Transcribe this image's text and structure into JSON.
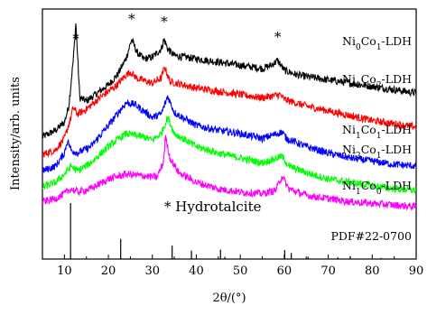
{
  "chart_data": {
    "type": "line",
    "title": "",
    "xlabel": "2θ/(°)",
    "ylabel": "Intensity/arb. units",
    "xlim": [
      5,
      90
    ],
    "x_ticks": [
      10,
      20,
      30,
      40,
      50,
      60,
      70,
      80,
      90
    ],
    "y_ticks_shown": false,
    "grid": false,
    "legend": "labels placed at right end of each curve",
    "series": [
      {
        "label_parts": [
          "Ni",
          "0",
          "Co",
          "1",
          "-LDH"
        ],
        "color": "#000000",
        "x": [
          5,
          8,
          10,
          11,
          12,
          12.6,
          13.5,
          15,
          18,
          20,
          22,
          24,
          25.3,
          26.5,
          28,
          30,
          32,
          32.7,
          33.5,
          35,
          40,
          45,
          50,
          55,
          57,
          58.5,
          60,
          63,
          70,
          75,
          80,
          85,
          90
        ],
        "y": [
          0.38,
          0.42,
          0.47,
          0.57,
          0.85,
          1.08,
          0.62,
          0.6,
          0.66,
          0.7,
          0.76,
          0.86,
          0.98,
          0.9,
          0.86,
          0.87,
          0.92,
          0.98,
          0.92,
          0.88,
          0.86,
          0.84,
          0.82,
          0.8,
          0.82,
          0.85,
          0.79,
          0.76,
          0.73,
          0.71,
          0.69,
          0.67,
          0.65
        ]
      },
      {
        "label_parts": [
          "Ni",
          "1",
          "Co",
          "2",
          "-LDH"
        ],
        "color": "#ff0000",
        "x": [
          5,
          8,
          10,
          11.5,
          12,
          13,
          15,
          18,
          20,
          22,
          24,
          25,
          26.5,
          30,
          32,
          32.8,
          34,
          40,
          45,
          50,
          55,
          59,
          60,
          65,
          70,
          75,
          80,
          85,
          90
        ],
        "y": [
          0.27,
          0.3,
          0.37,
          0.5,
          0.56,
          0.52,
          0.55,
          0.62,
          0.66,
          0.7,
          0.76,
          0.78,
          0.74,
          0.71,
          0.74,
          0.81,
          0.72,
          0.68,
          0.66,
          0.64,
          0.62,
          0.64,
          0.61,
          0.57,
          0.54,
          0.51,
          0.48,
          0.46,
          0.44
        ]
      },
      {
        "label_parts": [
          "Ni",
          "1",
          "Co",
          "1",
          "-LDH"
        ],
        "color": "#0000ff",
        "x": [
          5,
          8,
          10,
          10.7,
          11.5,
          13,
          16,
          20,
          24,
          26,
          28,
          30,
          32,
          33.5,
          35,
          40,
          45,
          50,
          55,
          59.5,
          60.5,
          65,
          70,
          75,
          80,
          85,
          90
        ],
        "y": [
          0.17,
          0.2,
          0.28,
          0.36,
          0.3,
          0.28,
          0.32,
          0.45,
          0.59,
          0.58,
          0.54,
          0.5,
          0.52,
          0.63,
          0.53,
          0.45,
          0.42,
          0.4,
          0.37,
          0.41,
          0.37,
          0.32,
          0.28,
          0.25,
          0.23,
          0.21,
          0.2
        ]
      },
      {
        "label_parts": [
          "Ni",
          "2",
          "Co",
          "1",
          "-LDH"
        ],
        "color": "#00ff00",
        "x": [
          5,
          8,
          10,
          11.5,
          13,
          16,
          20,
          24,
          28,
          30,
          32,
          33.5,
          35,
          40,
          45,
          50,
          55,
          59.5,
          61,
          65,
          70,
          75,
          80,
          85,
          90
        ],
        "y": [
          0.07,
          0.1,
          0.15,
          0.2,
          0.17,
          0.22,
          0.32,
          0.4,
          0.38,
          0.36,
          0.4,
          0.5,
          0.4,
          0.32,
          0.28,
          0.25,
          0.22,
          0.26,
          0.2,
          0.16,
          0.12,
          0.1,
          0.08,
          0.06,
          0.05
        ]
      },
      {
        "label_parts": [
          "Ni",
          "1",
          "Co",
          "0",
          "-LDH"
        ],
        "color": "#ff00ff",
        "x": [
          5,
          8,
          10,
          11.5,
          13,
          16,
          20,
          24,
          28,
          31,
          32.5,
          33,
          34,
          36,
          40,
          45,
          50,
          55,
          58,
          59.5,
          61,
          65,
          70,
          75,
          80,
          85,
          90
        ],
        "y": [
          -0.02,
          0.0,
          0.03,
          0.06,
          0.04,
          0.06,
          0.12,
          0.15,
          0.14,
          0.13,
          0.22,
          0.38,
          0.25,
          0.16,
          0.1,
          0.06,
          0.04,
          0.03,
          0.05,
          0.14,
          0.06,
          0.02,
          0.0,
          -0.02,
          -0.03,
          -0.04,
          -0.05
        ]
      }
    ],
    "reference": {
      "label": "PDF#22-0700",
      "type": "stick pattern",
      "peaks_2theta": [
        11.4,
        22.8,
        34.5,
        38.9,
        45.5,
        46.5,
        60.1,
        61.6,
        65.4,
        72.2,
        75.0,
        82.0
      ],
      "relative_intensity": [
        100,
        36,
        24,
        15,
        17,
        4,
        16,
        11,
        4,
        3,
        5,
        2
      ]
    },
    "annotations": {
      "hydrotalcite_legend": "* Hydrotalcite",
      "peak_markers": [
        "*",
        "*",
        "*",
        "*"
      ],
      "peak_marker_positions_2theta": [
        12.6,
        25.3,
        32.7,
        58.5
      ]
    }
  }
}
